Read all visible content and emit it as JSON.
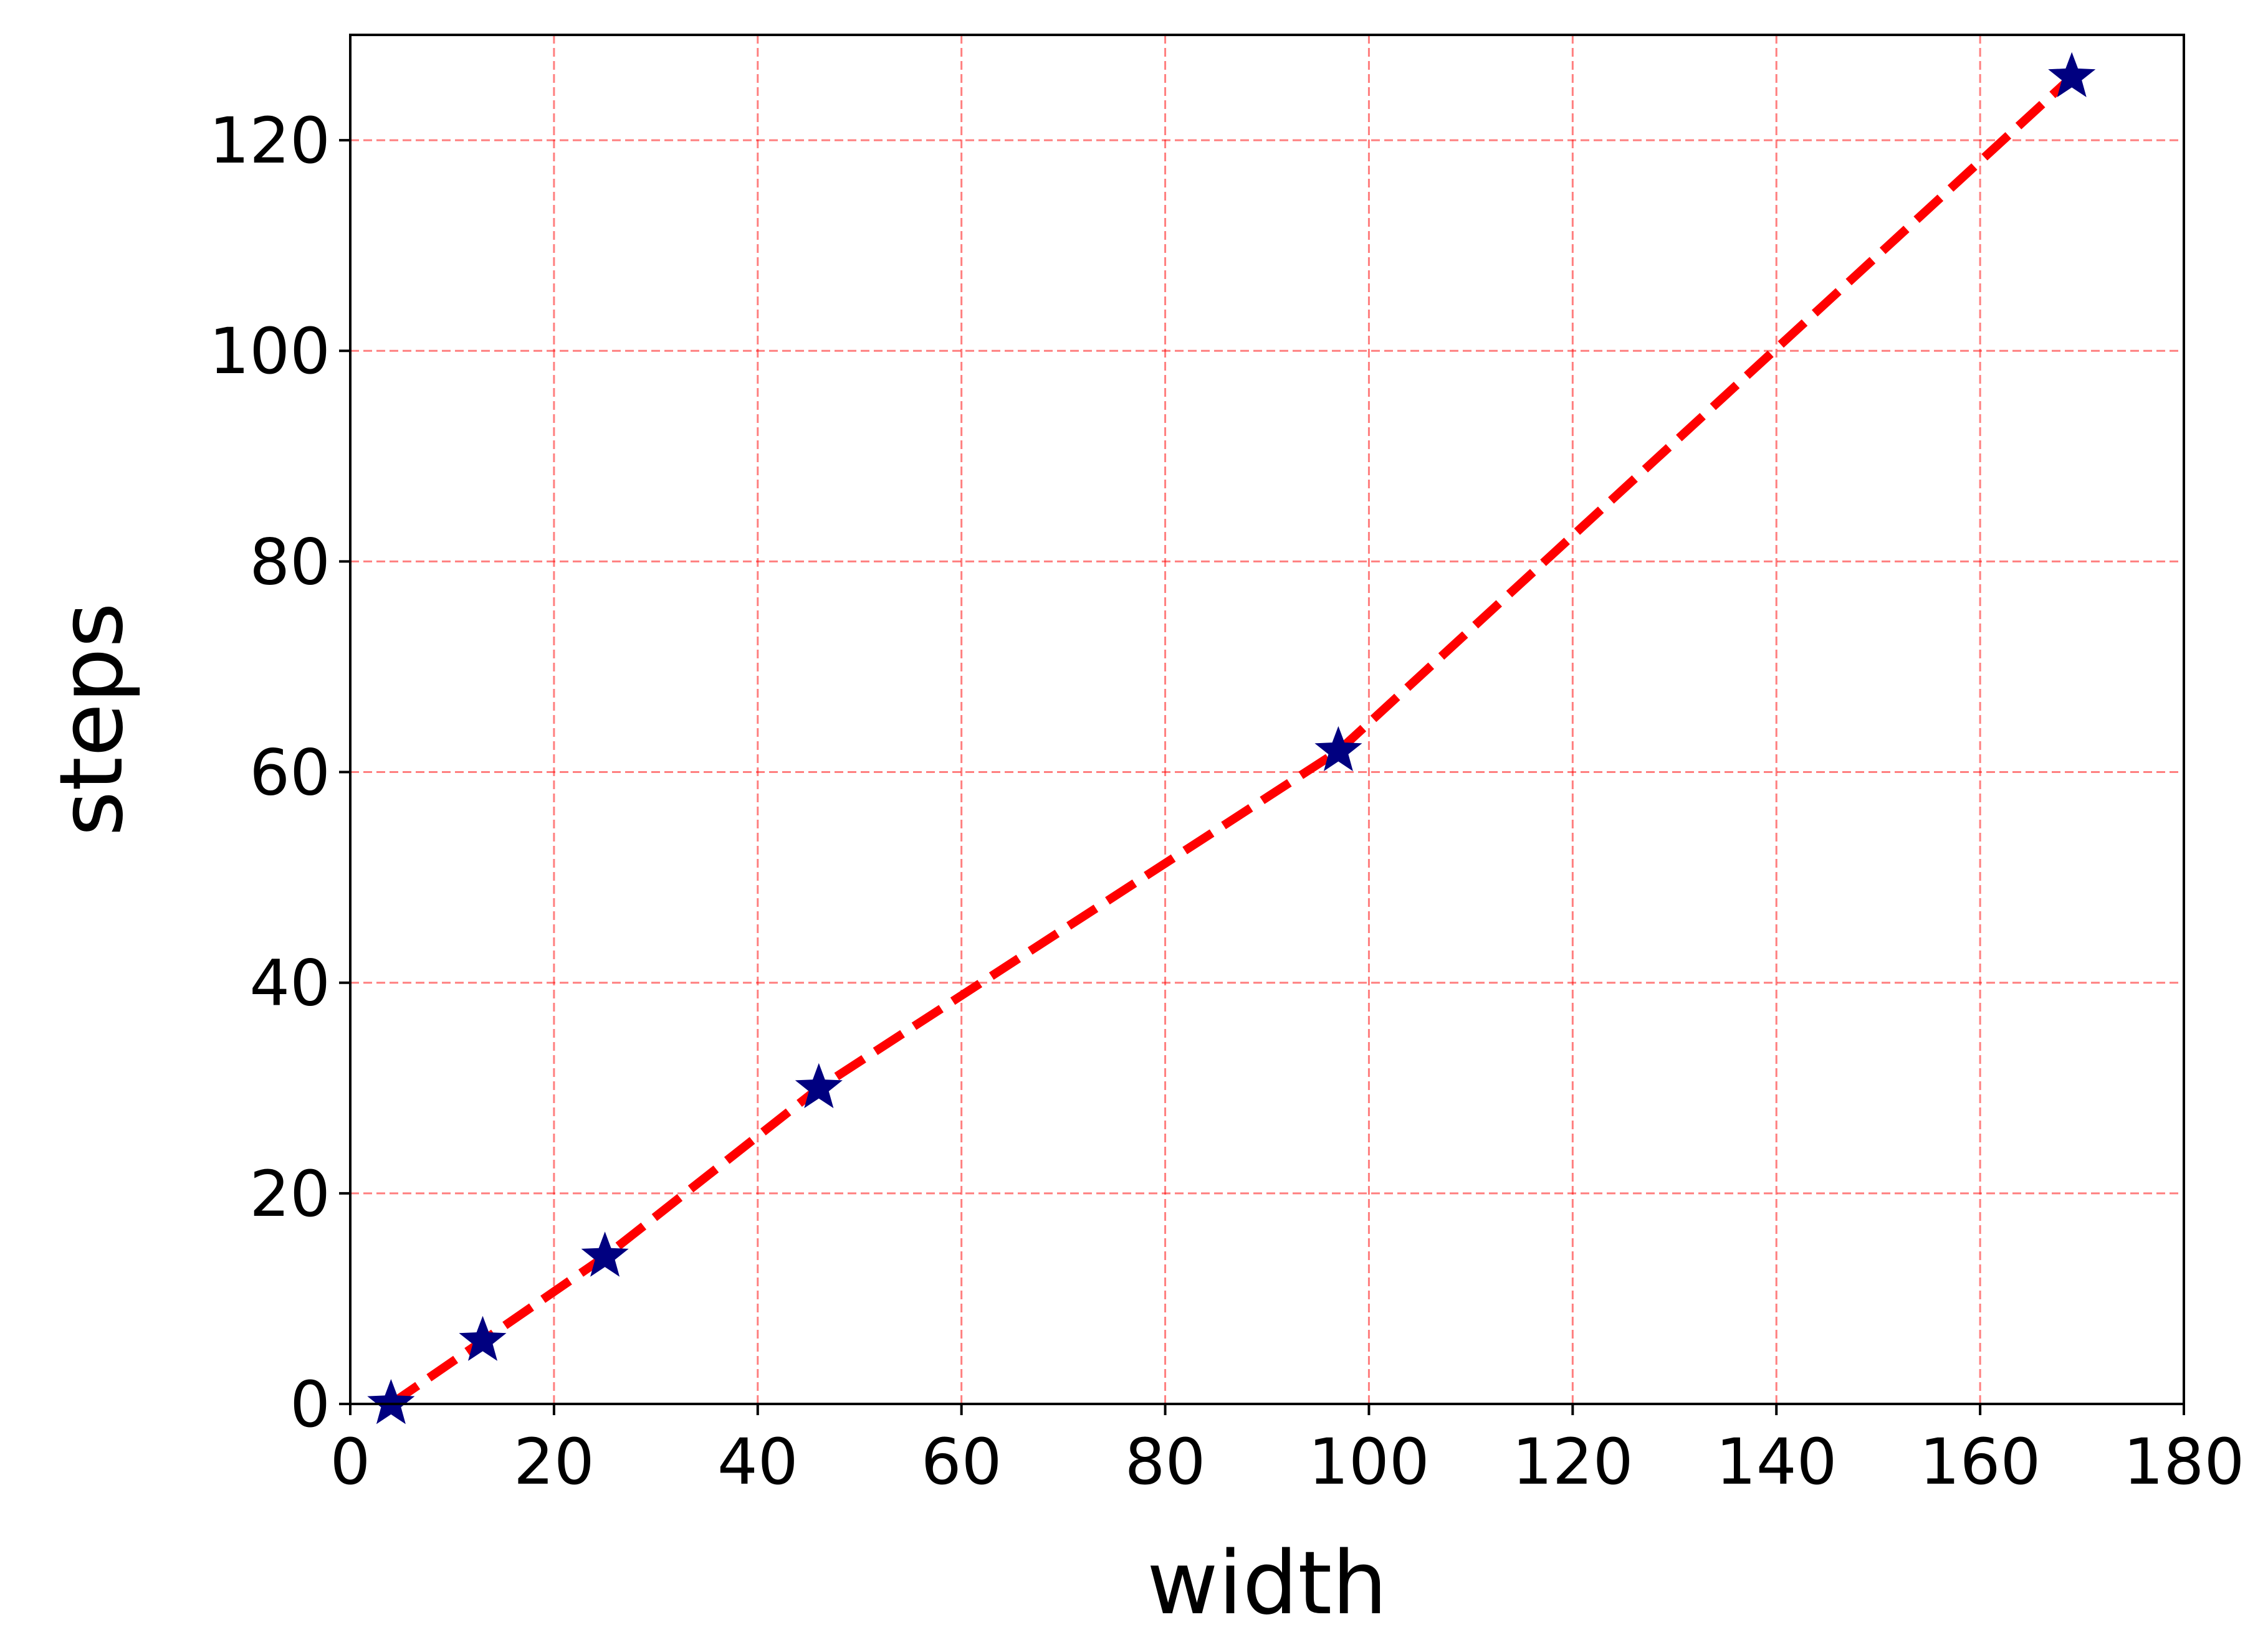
{
  "chart_data": {
    "type": "line",
    "xlabel": "width",
    "ylabel": "steps",
    "x": [
      4,
      13,
      25,
      46,
      97,
      169
    ],
    "series": [
      {
        "values": [
          0,
          6,
          14,
          30,
          62,
          126
        ],
        "color": "red",
        "line_style": "dashed",
        "marker": "star",
        "marker_color": "navy"
      }
    ],
    "xlim": [
      0,
      180
    ],
    "xticks": [
      0,
      20,
      40,
      60,
      80,
      100,
      120,
      140,
      160,
      180
    ],
    "ylim": [
      0,
      130
    ],
    "yticks": [
      0,
      20,
      40,
      60,
      80,
      100,
      120
    ],
    "grid": true,
    "grid_color": "red"
  }
}
